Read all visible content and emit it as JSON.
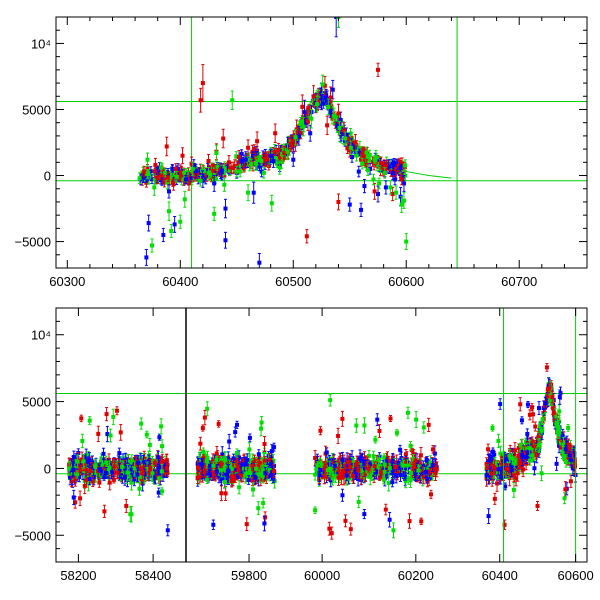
{
  "chart_data": [
    {
      "type": "scatter",
      "panel": "top",
      "xlim": [
        60290,
        60760
      ],
      "ylim": [
        -7000,
        12000
      ],
      "xticks": [
        {
          "value": 60300,
          "label": "60300"
        },
        {
          "value": 60400,
          "label": "60400"
        },
        {
          "value": 60500,
          "label": "60500"
        },
        {
          "value": 60600,
          "label": "60600"
        },
        {
          "value": 60700,
          "label": "60700"
        }
      ],
      "yticks": [
        {
          "value": -5000,
          "label": "−5000"
        },
        {
          "value": 0,
          "label": "0"
        },
        {
          "value": 5000,
          "label": "5000"
        },
        {
          "value": 10000,
          "label": "10⁴"
        }
      ],
      "vlines": [
        60410,
        60645
      ],
      "hlines": [
        5600,
        -400
      ],
      "model_curve": {
        "x": [
          60540,
          60570,
          60600,
          60620,
          60640
        ],
        "y": [
          2600,
          1000,
          300,
          0,
          -200
        ]
      },
      "series": [
        {
          "color": "#0000ff",
          "x": [
            60365,
            60372,
            60380,
            60390,
            60398,
            60405,
            60412,
            60420,
            60430,
            60440,
            60450,
            60458,
            60465,
            60472,
            60480,
            60488,
            60495,
            60500,
            60505,
            60510,
            60515,
            60520,
            60525,
            60530,
            60535,
            60538,
            60542,
            60547,
            60552,
            60558,
            60563,
            60568,
            60575,
            60582,
            60590,
            60595,
            60370,
            60385,
            60395,
            60440,
            60470,
            60550,
            60560,
            60598
          ],
          "y": [
            -300,
            -3600,
            200,
            -1200,
            500,
            -300,
            800,
            -400,
            -600,
            -2500,
            200,
            1200,
            -1300,
            300,
            1500,
            700,
            2300,
            1200,
            3000,
            4800,
            3200,
            5500,
            6200,
            5800,
            6500,
            12000,
            4200,
            3100,
            1400,
            300,
            -800,
            500,
            -1400,
            -900,
            -300,
            -1600,
            -6200,
            -4500,
            -3700,
            -4900,
            -6600,
            -2200,
            -2600,
            -600
          ],
          "err": [
            400,
            600,
            300,
            500,
            400,
            300,
            400,
            500,
            600,
            700,
            400,
            600,
            800,
            400,
            500,
            400,
            600,
            500,
            700,
            900,
            600,
            700,
            800,
            600,
            700,
            1500,
            600,
            500,
            400,
            400,
            500,
            400,
            600,
            500,
            400,
            700,
            600,
            500,
            600,
            600,
            700,
            500,
            500,
            600
          ]
        },
        {
          "color": "#e00000",
          "x": [
            60368,
            60378,
            60388,
            60396,
            60402,
            60410,
            60418,
            60425,
            60432,
            60438,
            60445,
            60452,
            60460,
            60468,
            60476,
            60484,
            60492,
            60498,
            60503,
            60508,
            60513,
            60518,
            60522,
            60528,
            60533,
            60540,
            60545,
            60550,
            60555,
            60560,
            60565,
            60572,
            60580,
            60588,
            60596,
            60420,
            60380,
            60530,
            60575,
            60540,
            60512
          ],
          "y": [
            300,
            800,
            2200,
            500,
            1500,
            900,
            5700,
            1100,
            1800,
            2800,
            600,
            1400,
            2100,
            2600,
            1200,
            3200,
            1700,
            2400,
            3500,
            5200,
            4100,
            6000,
            5600,
            6800,
            5900,
            4700,
            3400,
            1900,
            2500,
            1200,
            800,
            -1200,
            600,
            -1400,
            -300,
            7000,
            -200,
            3800,
            8000,
            -2000,
            -4600
          ],
          "err": [
            400,
            500,
            700,
            400,
            600,
            500,
            900,
            500,
            600,
            700,
            400,
            500,
            600,
            700,
            500,
            700,
            500,
            600,
            700,
            900,
            700,
            800,
            600,
            700,
            800,
            700,
            600,
            500,
            600,
            500,
            400,
            600,
            400,
            500,
            400,
            1400,
            400,
            700,
            500,
            600,
            500
          ]
        },
        {
          "color": "#00e000",
          "x": [
            60364,
            60371,
            60377,
            60383,
            60390,
            60397,
            60404,
            60411,
            60418,
            60425,
            60432,
            60439,
            60446,
            60453,
            60460,
            60467,
            60474,
            60481,
            60488,
            60495,
            60502,
            60509,
            60516,
            60521,
            60526,
            60531,
            60536,
            60541,
            60546,
            60551,
            60556,
            60561,
            60566,
            60571,
            60576,
            60581,
            60586,
            60591,
            60596,
            60600,
            60375,
            60392,
            60400,
            60450,
            60540,
            60598,
            60430
          ],
          "y": [
            -200,
            1200,
            -900,
            600,
            -2700,
            -100,
            -1800,
            500,
            -400,
            200,
            1700,
            -700,
            5700,
            300,
            -1300,
            900,
            200,
            -2100,
            600,
            1800,
            2900,
            3700,
            4300,
            5400,
            6900,
            5200,
            4500,
            3600,
            2800,
            2100,
            1500,
            900,
            400,
            -300,
            -600,
            200,
            -900,
            -1300,
            -2200,
            -5000,
            -5300,
            -4200,
            -3500,
            300,
            12000,
            -1900,
            -2900
          ],
          "err": [
            400,
            500,
            600,
            400,
            700,
            400,
            600,
            500,
            400,
            400,
            600,
            500,
            700,
            400,
            600,
            500,
            400,
            600,
            500,
            600,
            600,
            700,
            700,
            600,
            700,
            600,
            600,
            500,
            500,
            500,
            400,
            400,
            400,
            400,
            400,
            400,
            500,
            500,
            600,
            600,
            500,
            500,
            500,
            400,
            800,
            600,
            500
          ]
        }
      ]
    },
    {
      "type": "scatter",
      "panel": "bottom",
      "xlim": [
        0,
        1
      ],
      "ylim": [
        -7000,
        12000
      ],
      "segments": [
        {
          "xlim": [
            58140,
            58480
          ],
          "xticks": [
            {
              "value": 58200,
              "label": "58200"
            },
            {
              "value": 58400,
              "label": "58400"
            }
          ],
          "data_range": [
            58175,
            58440
          ]
        },
        {
          "xlim": [
            59610,
            59940
          ],
          "xticks": [
            {
              "value": 59800,
              "label": "59800"
            }
          ],
          "data_range": [
            59640,
            59880
          ]
        },
        {
          "xlim": [
            59940,
            60290
          ],
          "xticks": [
            {
              "value": 60000,
              "label": "60000"
            },
            {
              "value": 60200,
              "label": "60200"
            }
          ],
          "data_range": [
            59985,
            60245
          ]
        },
        {
          "xlim": [
            60290,
            60630
          ],
          "xticks": [
            {
              "value": 60400,
              "label": "60400"
            },
            {
              "value": 60600,
              "label": "60600"
            }
          ],
          "data_range": [
            60365,
            60600
          ]
        }
      ],
      "yticks": [
        {
          "value": -5000,
          "label": "−5000"
        },
        {
          "value": 0,
          "label": "0"
        },
        {
          "value": 5000,
          "label": "5000"
        },
        {
          "value": 10000,
          "label": "10⁴"
        }
      ],
      "vlines": [
        60410,
        60600
      ],
      "hlines": [
        5600,
        -400
      ],
      "series_colors": [
        "#0000ff",
        "#e00000",
        "#00e000"
      ]
    }
  ]
}
